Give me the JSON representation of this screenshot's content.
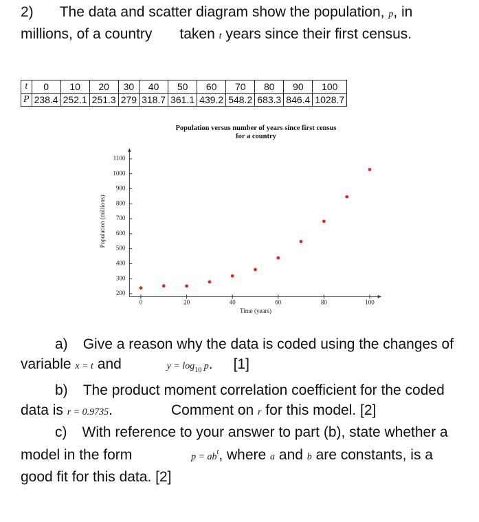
{
  "question": {
    "number": "2)",
    "intro": [
      "The data and scatter diagram show the population, ",
      "p",
      ", in millions, of a country",
      "taken ",
      "t",
      " years since their first census."
    ]
  },
  "table": {
    "rows": [
      [
        "t",
        0,
        10,
        20,
        30,
        40,
        50,
        60,
        70,
        80,
        90,
        100
      ],
      [
        "P",
        238.4,
        252.1,
        251.3,
        279,
        318.7,
        361.1,
        439.2,
        548.2,
        683.3,
        846.4,
        1028.7
      ]
    ]
  },
  "chart_data": {
    "type": "scatter",
    "title": "Population versus number of years since first census for a country",
    "x_label": "Time (years)",
    "y_label": "Population (millions)",
    "x": [
      0,
      10,
      20,
      30,
      40,
      50,
      60,
      70,
      80,
      90,
      100
    ],
    "values": [
      238.4,
      252.1,
      251.3,
      279,
      318.7,
      361.1,
      439.2,
      548.2,
      683.3,
      846.4,
      1028.7
    ],
    "color": "#e3262a",
    "xlim": [
      -5,
      105
    ],
    "xticks": [
      0,
      20,
      40,
      60,
      80,
      100
    ],
    "ylim": [
      180,
      1170
    ],
    "yticks": [
      200,
      300,
      400,
      500,
      600,
      700,
      800,
      900,
      1000,
      1100
    ]
  },
  "parts": [
    {
      "label": "a)",
      "text": [
        "Give a reason why the data is coded using the changes of variable ",
        "x = t",
        " and ",
        "y = log",
        "10",
        " p",
        ".",
        "[1]"
      ]
    },
    {
      "label": "b)",
      "text": [
        "The product moment correlation coefficient for the coded data is ",
        "r = 0.9735",
        ".",
        "Comment on ",
        "r",
        " for this model. [2]"
      ]
    },
    {
      "label": "c)",
      "text": [
        "With reference to your answer to part (b), state whether a model in the form ",
        "p = ab",
        "t",
        ", where ",
        "a",
        " and ",
        "b",
        " are constants, is a good fit for this data. [2]"
      ]
    }
  ]
}
